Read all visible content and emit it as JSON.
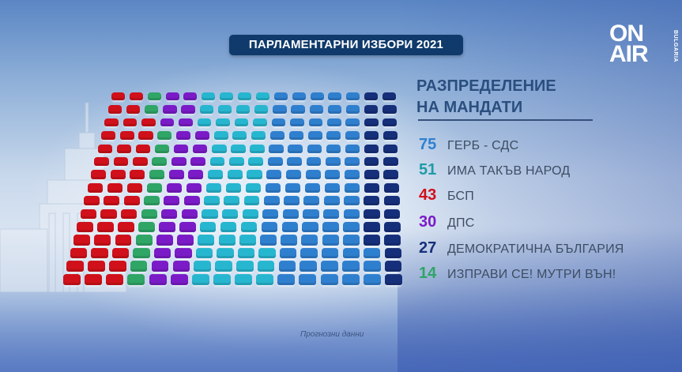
{
  "header": {
    "title": "ПАРЛАМЕНТАРНИ ИЗБОРИ 2021"
  },
  "logo": {
    "line1": "ON",
    "line2": "AIR",
    "sub": "BULGARIA"
  },
  "legend": {
    "title_line1": "РАЗПРЕДЕЛЕНИЕ",
    "title_line2": "НА МАНДАТИ",
    "items": [
      {
        "count": "75",
        "name": "ГЕРБ - СДС",
        "color": "#2f7fcf"
      },
      {
        "count": "51",
        "name": "ИМА ТАКЪВ НАРОД",
        "color": "#1fa2b5"
      },
      {
        "count": "43",
        "name": "БСП",
        "color": "#d0101a"
      },
      {
        "count": "30",
        "name": "ДПС",
        "color": "#7a1bc7"
      },
      {
        "count": "27",
        "name": "ДЕМОКРАТИЧНА БЪЛГАРИЯ",
        "color": "#162f7a"
      },
      {
        "count": "14",
        "name": "ИЗПРАВИ СЕ! МУТРИ ВЪН!",
        "color": "#2fa566"
      }
    ]
  },
  "footnote": "Прогнозни данни",
  "chart_data": {
    "type": "waffle",
    "title": "ПАРЛАМЕНТАРНИ ИЗБОРИ 2021 — РАЗПРЕДЕЛЕНИЕ НА МАНДАТИ",
    "subtitle": "Прогнозни данни",
    "total_seats": 240,
    "grid": {
      "columns": 16,
      "rows": 15
    },
    "categories": [
      "ГЕРБ - СДС",
      "ИМА ТАКЪВ НАРОД",
      "БСП",
      "ДПС",
      "ДЕМОКРАТИЧНА БЪЛГАРИЯ",
      "ИЗПРАВИ СЕ! МУТРИ ВЪН!"
    ],
    "values": [
      75,
      51,
      43,
      30,
      27,
      14
    ],
    "colors": [
      "#2f7fcf",
      "#27b6cf",
      "#d0101a",
      "#7a1bc7",
      "#162f7a",
      "#2fa566"
    ],
    "grid_order_left_to_right": [
      "БСП",
      "ИЗПРАВИ СЕ! МУТРИ ВЪН!",
      "ДПС",
      "ИМА ТАКЪВ НАРОД",
      "ГЕРБ - СДС",
      "ДЕМОКРАТИЧНА БЪЛГАРИЯ"
    ],
    "legend_position": "right"
  }
}
